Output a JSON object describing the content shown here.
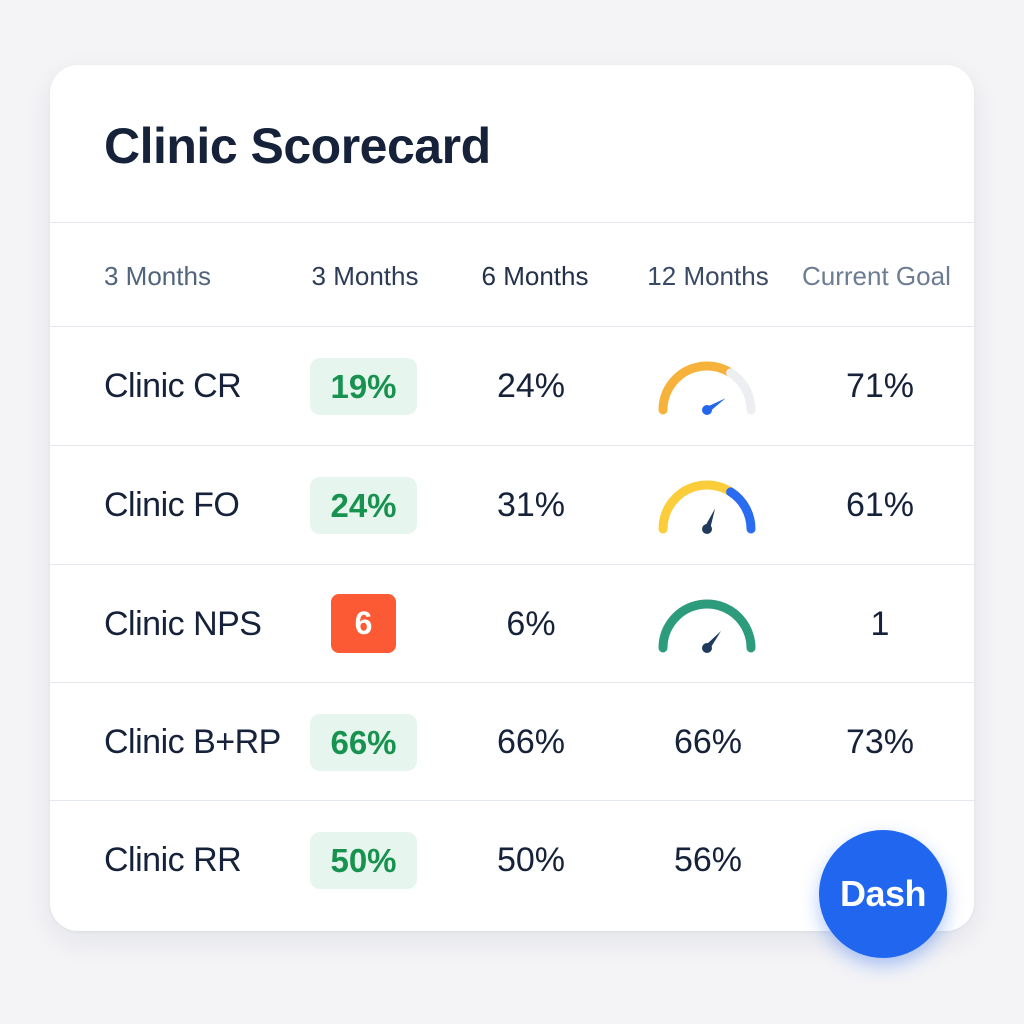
{
  "title": "Clinic Scorecard",
  "headers": [
    "3 Months",
    "3 Months",
    "6 Months",
    "12 Months",
    "Current Goal"
  ],
  "rows": [
    {
      "label": "Clinic CR",
      "c1": "19%",
      "c2": "24%",
      "gauge": {
        "value": 0.82,
        "colors": [
          "#f7b23b",
          "#f7b23b",
          "#eceef2"
        ],
        "needle": "#2368ec"
      },
      "goal": "71%"
    },
    {
      "label": "Clinic FO",
      "c1": "24%",
      "c2": "31%",
      "gauge": {
        "value": 0.62,
        "colors": [
          "#fbcd3a",
          "#fbcd3a",
          "#2a6cf0"
        ],
        "needle": "#1f3a5c"
      },
      "goal": "61%"
    },
    {
      "label": "Clinic NPS",
      "c1": "6",
      "c2": "6%",
      "gauge": {
        "value": 0.72,
        "colors": [
          "#2c9c7d",
          "#2c9c7d",
          "#2c9c7d"
        ],
        "needle": "#1f3a5c"
      },
      "goal": "1"
    },
    {
      "label": "Clinic B+RP",
      "c1": "66%",
      "c2": "66%",
      "c3": "66%",
      "goal": "73%"
    },
    {
      "label": "Clinic RR",
      "c1": "50%",
      "c2": "50%",
      "c3": "56%",
      "goal": ""
    }
  ],
  "fab": {
    "label": "Dash"
  },
  "colors": {
    "accent": "#2166ee",
    "positive": "#17924f",
    "positive_bg": "#e6f6ee",
    "alert": "#fb5a34"
  }
}
